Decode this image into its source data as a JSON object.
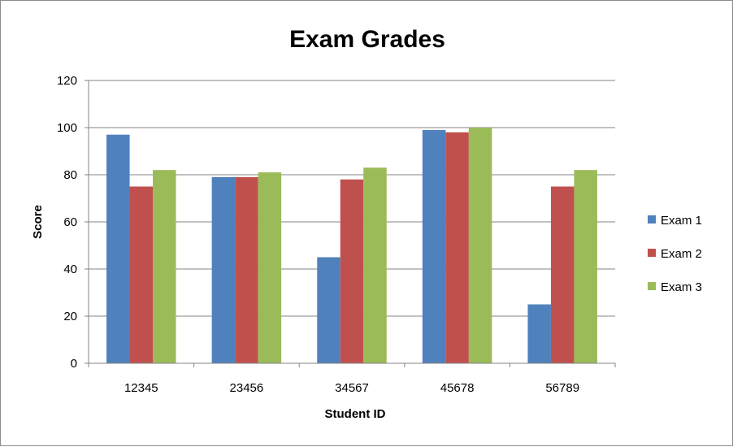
{
  "chart_data": {
    "type": "bar",
    "title": "Exam Grades",
    "xlabel": "Student ID",
    "ylabel": "Score",
    "categories": [
      "12345",
      "23456",
      "34567",
      "45678",
      "56789"
    ],
    "series": [
      {
        "name": "Exam 1",
        "color": "#4F81BD",
        "values": [
          97,
          79,
          45,
          99,
          25
        ]
      },
      {
        "name": "Exam 2",
        "color": "#C0504D",
        "values": [
          75,
          79,
          78,
          98,
          75
        ]
      },
      {
        "name": "Exam 3",
        "color": "#9BBB59",
        "values": [
          82,
          81,
          83,
          100,
          82
        ]
      }
    ],
    "ylim": [
      0,
      120
    ],
    "yticks": [
      0,
      20,
      40,
      60,
      80,
      100,
      120
    ],
    "grid": true,
    "legend_position": "right"
  }
}
